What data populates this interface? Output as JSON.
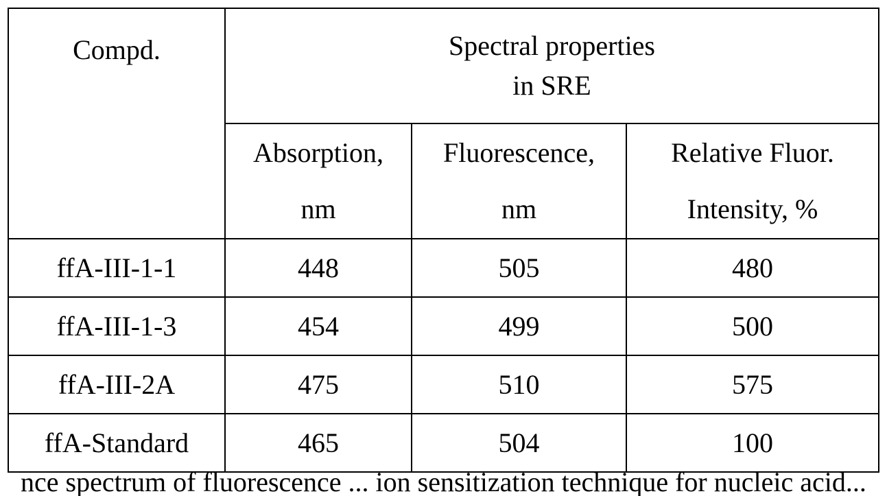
{
  "table": {
    "header": {
      "compound_label": "Compd.",
      "group_label_line1": "Spectral properties",
      "group_label_line2": "in SRE",
      "columns": [
        {
          "line1": "Absorption,",
          "line2": "nm"
        },
        {
          "line1": "Fluorescence,",
          "line2": "nm"
        },
        {
          "line1": "Relative Fluor.",
          "line2": "Intensity, %"
        }
      ]
    },
    "rows": [
      {
        "compound": "ffA-III-1-1",
        "absorption": "448",
        "fluorescence": "505",
        "intensity": "480"
      },
      {
        "compound": "ffA-III-1-3",
        "absorption": "454",
        "fluorescence": "499",
        "intensity": "500"
      },
      {
        "compound": "ffA-III-2A",
        "absorption": "475",
        "fluorescence": "510",
        "intensity": "575"
      },
      {
        "compound": "ffA-Standard",
        "absorption": "465",
        "fluorescence": "504",
        "intensity": "100"
      }
    ]
  },
  "footer_fragment": "nce spectrum of fluorescence ... ion sensitization technique for nucleic acid..."
}
